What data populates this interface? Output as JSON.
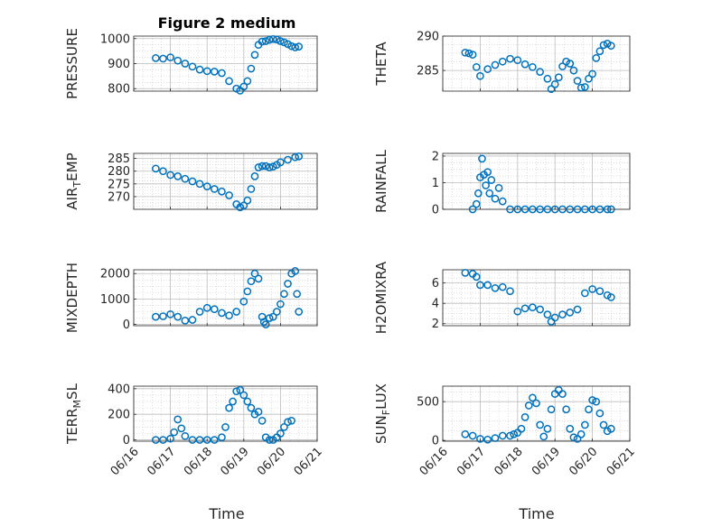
{
  "title": "Figure 2 medium",
  "xlabel": "Time",
  "xticks": [
    "06/16",
    "06/17",
    "06/18",
    "06/19",
    "06/20",
    "06/21"
  ],
  "marker_color": "#0072BD",
  "chart_data": [
    {
      "type": "scatter",
      "ylabel": "PRESSURE",
      "ylim": [
        790,
        1010
      ],
      "yticks": [
        800,
        900,
        1000
      ],
      "grid": true,
      "x": [
        0.6,
        0.8,
        1.0,
        1.2,
        1.4,
        1.6,
        1.8,
        2.0,
        2.2,
        2.4,
        2.6,
        2.8,
        2.9,
        3.0,
        3.1,
        3.2,
        3.3,
        3.4,
        3.5,
        3.6,
        3.7,
        3.8,
        3.9,
        4.0,
        4.1,
        4.2,
        4.3,
        4.4,
        4.5
      ],
      "y": [
        922,
        920,
        925,
        912,
        900,
        888,
        876,
        870,
        868,
        862,
        830,
        800,
        792,
        808,
        830,
        880,
        935,
        975,
        988,
        990,
        995,
        998,
        996,
        990,
        985,
        978,
        970,
        965,
        968
      ]
    },
    {
      "type": "scatter",
      "ylabel": "THETA",
      "ylim": [
        282,
        290
      ],
      "yticks": [
        285,
        290
      ],
      "grid": true,
      "x": [
        0.6,
        0.7,
        0.8,
        0.9,
        1.0,
        1.2,
        1.4,
        1.6,
        1.8,
        2.0,
        2.2,
        2.4,
        2.6,
        2.8,
        2.9,
        3.0,
        3.1,
        3.2,
        3.3,
        3.4,
        3.5,
        3.6,
        3.7,
        3.8,
        3.9,
        4.0,
        4.1,
        4.2,
        4.3,
        4.4,
        4.5
      ],
      "y": [
        287.6,
        287.5,
        287.3,
        285.5,
        284.2,
        285.2,
        285.8,
        286.3,
        286.7,
        286.5,
        285.9,
        285.5,
        284.8,
        283.8,
        282.3,
        283.0,
        284.0,
        285.6,
        286.3,
        286.0,
        285.0,
        283.5,
        282.5,
        282.6,
        283.8,
        284.5,
        286.8,
        287.8,
        288.7,
        288.9,
        288.6
      ]
    },
    {
      "type": "scatter",
      "ylabel": "AIR_TEMP",
      "ylim": [
        265,
        287
      ],
      "yticks": [
        270,
        275,
        280,
        285
      ],
      "grid": true,
      "x": [
        0.6,
        0.8,
        1.0,
        1.2,
        1.4,
        1.6,
        1.8,
        2.0,
        2.2,
        2.4,
        2.6,
        2.8,
        2.9,
        3.0,
        3.1,
        3.2,
        3.3,
        3.4,
        3.5,
        3.6,
        3.7,
        3.8,
        3.9,
        4.0,
        4.2,
        4.4,
        4.5
      ],
      "y": [
        281,
        280,
        278.5,
        278.0,
        277.0,
        276.0,
        275.0,
        274.0,
        273.0,
        272.0,
        270.5,
        267.0,
        265.8,
        266.5,
        268.5,
        273.0,
        278.0,
        281.5,
        282.0,
        282.0,
        281.5,
        281.8,
        282.5,
        283.5,
        284.5,
        285.5,
        285.8
      ]
    },
    {
      "type": "scatter",
      "ylabel": "RAINFALL",
      "ylim": [
        0,
        2.1
      ],
      "yticks": [
        0,
        1,
        2
      ],
      "grid": true,
      "x": [
        0.8,
        0.9,
        0.95,
        1.0,
        1.05,
        1.1,
        1.15,
        1.2,
        1.25,
        1.3,
        1.4,
        1.5,
        1.6,
        1.8,
        2.0,
        2.2,
        2.4,
        2.6,
        2.8,
        3.0,
        3.2,
        3.4,
        3.6,
        3.8,
        4.0,
        4.2,
        4.4,
        4.5
      ],
      "y": [
        0.0,
        0.2,
        0.6,
        1.2,
        1.9,
        1.3,
        0.9,
        1.4,
        0.6,
        1.1,
        0.4,
        0.8,
        0.3,
        0.0,
        0.0,
        0.0,
        0.0,
        0.0,
        0.0,
        0.0,
        0.0,
        0.0,
        0.0,
        0.0,
        0.0,
        0.0,
        0.0,
        0.0
      ]
    },
    {
      "type": "scatter",
      "ylabel": "MIXDEPTH",
      "ylim": [
        -50,
        2150
      ],
      "yticks": [
        0,
        1000,
        2000
      ],
      "grid": true,
      "x": [
        0.6,
        0.8,
        1.0,
        1.2,
        1.4,
        1.6,
        1.8,
        2.0,
        2.2,
        2.4,
        2.6,
        2.8,
        3.0,
        3.1,
        3.2,
        3.3,
        3.4,
        3.5,
        3.55,
        3.6,
        3.7,
        3.8,
        3.9,
        4.0,
        4.1,
        4.2,
        4.3,
        4.4,
        4.45,
        4.5
      ],
      "y": [
        300,
        320,
        400,
        300,
        150,
        180,
        500,
        650,
        600,
        450,
        350,
        500,
        900,
        1300,
        1700,
        2000,
        1800,
        300,
        100,
        0,
        250,
        300,
        500,
        800,
        1200,
        1600,
        2000,
        2100,
        1200,
        500
      ]
    },
    {
      "type": "scatter",
      "ylabel": "H2OMIXRA",
      "ylim": [
        1.8,
        7.3
      ],
      "yticks": [
        2,
        4,
        6
      ],
      "grid": true,
      "x": [
        0.6,
        0.8,
        0.9,
        1.0,
        1.2,
        1.4,
        1.6,
        1.8,
        2.0,
        2.2,
        2.4,
        2.6,
        2.8,
        2.9,
        3.0,
        3.2,
        3.4,
        3.6,
        3.8,
        4.0,
        4.2,
        4.4,
        4.5
      ],
      "y": [
        7.0,
        6.9,
        6.6,
        5.8,
        5.8,
        5.5,
        5.6,
        5.2,
        3.2,
        3.5,
        3.6,
        3.4,
        2.9,
        2.2,
        2.6,
        2.9,
        3.1,
        3.4,
        5.0,
        5.4,
        5.2,
        4.8,
        4.6
      ]
    },
    {
      "type": "scatter",
      "ylabel": "TERR_MSL",
      "ylim": [
        -10,
        420
      ],
      "yticks": [
        0,
        200,
        400
      ],
      "grid": true,
      "x": [
        0.6,
        0.8,
        1.0,
        1.1,
        1.2,
        1.3,
        1.4,
        1.6,
        1.8,
        2.0,
        2.2,
        2.4,
        2.5,
        2.6,
        2.7,
        2.8,
        2.9,
        3.0,
        3.1,
        3.2,
        3.3,
        3.4,
        3.5,
        3.6,
        3.7,
        3.8,
        3.9,
        4.0,
        4.1,
        4.2,
        4.3
      ],
      "y": [
        0,
        0,
        10,
        60,
        160,
        90,
        30,
        0,
        0,
        0,
        0,
        20,
        100,
        250,
        300,
        380,
        390,
        350,
        300,
        250,
        200,
        220,
        150,
        20,
        0,
        0,
        20,
        50,
        100,
        140,
        150
      ]
    },
    {
      "type": "scatter",
      "ylabel": "SUN_FLUX",
      "ylim": [
        -10,
        700
      ],
      "yticks": [
        0,
        500
      ],
      "grid": true,
      "x": [
        0.6,
        0.8,
        1.0,
        1.2,
        1.4,
        1.6,
        1.8,
        1.9,
        2.0,
        2.1,
        2.2,
        2.3,
        2.4,
        2.5,
        2.6,
        2.7,
        2.8,
        2.9,
        3.0,
        3.1,
        3.2,
        3.3,
        3.4,
        3.5,
        3.6,
        3.7,
        3.8,
        3.9,
        4.0,
        4.1,
        4.2,
        4.3,
        4.4,
        4.5
      ],
      "y": [
        80,
        60,
        20,
        10,
        30,
        60,
        60,
        80,
        100,
        150,
        300,
        450,
        550,
        480,
        200,
        50,
        150,
        400,
        600,
        650,
        600,
        400,
        150,
        40,
        20,
        80,
        200,
        400,
        520,
        500,
        350,
        200,
        120,
        150
      ]
    }
  ]
}
